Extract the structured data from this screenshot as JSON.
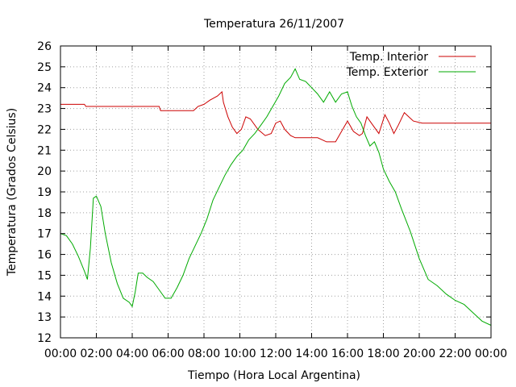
{
  "chart_data": {
    "type": "line",
    "title": "Temperatura 26/11/2007",
    "xlabel": "Tiempo (Hora Local Argentina)",
    "ylabel": "Temperatura (Grados Celsius)",
    "xlim": [
      "00:00",
      "24:00"
    ],
    "ylim": [
      12,
      26
    ],
    "grid": true,
    "legend_position": "top-right",
    "x_tick_labels": [
      "00:00",
      "02:00",
      "04:00",
      "06:00",
      "08:00",
      "10:00",
      "12:00",
      "14:00",
      "16:00",
      "18:00",
      "20:00",
      "22:00",
      "00:00"
    ],
    "y_tick_labels": [
      "12",
      "13",
      "14",
      "15",
      "16",
      "17",
      "18",
      "19",
      "20",
      "21",
      "22",
      "23",
      "24",
      "25",
      "26"
    ],
    "series": [
      {
        "name": "Temp. Interior",
        "color": "#cc0000",
        "x": [
          "00:00",
          "01:20",
          "01:25",
          "05:30",
          "05:35",
          "07:25",
          "07:40",
          "08:00",
          "08:20",
          "08:45",
          "09:00",
          "09:05",
          "09:20",
          "09:35",
          "09:50",
          "10:05",
          "10:20",
          "10:35",
          "11:00",
          "11:25",
          "11:45",
          "12:00",
          "12:15",
          "12:30",
          "12:50",
          "13:05",
          "13:20",
          "14:20",
          "14:50",
          "15:00",
          "15:20",
          "15:40",
          "16:00",
          "16:20",
          "16:40",
          "16:50",
          "17:05",
          "17:25",
          "17:45",
          "18:05",
          "18:20",
          "18:35",
          "18:50",
          "19:10",
          "19:25",
          "19:40",
          "20:10",
          "20:40",
          "24:00"
        ],
        "y": [
          23.2,
          23.2,
          23.1,
          23.1,
          22.9,
          22.9,
          23.1,
          23.2,
          23.4,
          23.6,
          23.8,
          23.3,
          22.6,
          22.1,
          21.8,
          22.0,
          22.6,
          22.5,
          22.0,
          21.7,
          21.8,
          22.3,
          22.4,
          22.0,
          21.7,
          21.6,
          21.6,
          21.6,
          21.4,
          21.4,
          21.4,
          21.9,
          22.4,
          21.9,
          21.7,
          21.8,
          22.6,
          22.2,
          21.8,
          22.7,
          22.3,
          21.8,
          22.2,
          22.8,
          22.6,
          22.4,
          22.3,
          22.3,
          22.3
        ]
      },
      {
        "name": "Temp. Exterior",
        "color": "#00aa00",
        "x": [
          "00:00",
          "00:20",
          "00:40",
          "01:00",
          "01:20",
          "01:30",
          "01:40",
          "01:50",
          "02:00",
          "02:15",
          "02:30",
          "02:50",
          "03:10",
          "03:30",
          "03:50",
          "04:00",
          "04:10",
          "04:20",
          "04:35",
          "04:50",
          "05:10",
          "05:30",
          "05:50",
          "06:10",
          "06:30",
          "06:50",
          "07:10",
          "07:30",
          "07:50",
          "08:10",
          "08:30",
          "08:50",
          "09:10",
          "09:30",
          "09:50",
          "10:10",
          "10:30",
          "10:50",
          "11:10",
          "11:30",
          "11:50",
          "12:10",
          "12:30",
          "12:50",
          "13:05",
          "13:20",
          "13:40",
          "14:00",
          "14:20",
          "14:40",
          "15:00",
          "15:20",
          "15:40",
          "16:00",
          "16:15",
          "16:30",
          "16:45",
          "17:00",
          "17:15",
          "17:30",
          "17:45",
          "18:00",
          "18:20",
          "18:40",
          "19:00",
          "19:30",
          "20:00",
          "20:30",
          "21:00",
          "21:30",
          "22:00",
          "22:30",
          "23:00",
          "23:30",
          "24:00"
        ],
        "y": [
          17.0,
          16.9,
          16.5,
          15.9,
          15.2,
          14.8,
          16.3,
          18.7,
          18.8,
          18.3,
          17.0,
          15.6,
          14.6,
          13.9,
          13.7,
          13.5,
          14.2,
          15.1,
          15.1,
          14.9,
          14.7,
          14.3,
          13.9,
          13.9,
          14.4,
          15.0,
          15.8,
          16.4,
          17.0,
          17.7,
          18.6,
          19.2,
          19.8,
          20.3,
          20.7,
          21.0,
          21.5,
          21.8,
          22.2,
          22.6,
          23.1,
          23.6,
          24.2,
          24.5,
          24.9,
          24.4,
          24.3,
          24.0,
          23.7,
          23.3,
          23.8,
          23.3,
          23.7,
          23.8,
          23.1,
          22.6,
          22.3,
          21.7,
          21.2,
          21.4,
          20.9,
          20.1,
          19.5,
          19.0,
          18.2,
          17.1,
          15.8,
          14.8,
          14.5,
          14.1,
          13.8,
          13.6,
          13.2,
          12.8,
          12.6
        ]
      }
    ]
  }
}
